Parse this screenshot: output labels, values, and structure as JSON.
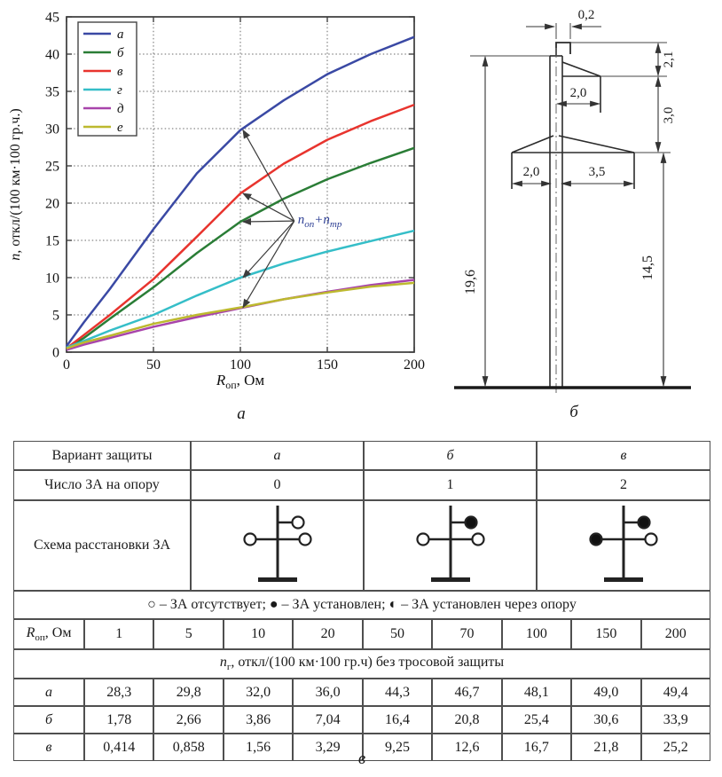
{
  "captions": {
    "chart": "а",
    "tower": "б",
    "table": "в"
  },
  "chart_data": {
    "type": "line",
    "title": "",
    "xlabel": {
      "base": "R",
      "sub": "оп",
      "rest": ", Ом"
    },
    "ylabel": {
      "ital": "n",
      "rest": ", откл/(100 км·100 гр.ч.)"
    },
    "xlim": [
      0,
      200
    ],
    "ylim": [
      0,
      45
    ],
    "xticks": [
      0,
      50,
      100,
      150,
      200
    ],
    "yticks": [
      0,
      5,
      10,
      15,
      20,
      25,
      30,
      35,
      40,
      45
    ],
    "grid": true,
    "legend_position": "top-left",
    "x": [
      0,
      10,
      25,
      50,
      75,
      100,
      125,
      150,
      175,
      200
    ],
    "series": [
      {
        "name": "а",
        "color": "#3a49a4",
        "values": [
          0.8,
          4.0,
          8.5,
          16.5,
          24.0,
          29.8,
          33.8,
          37.3,
          40.0,
          42.3
        ]
      },
      {
        "name": "б",
        "color": "#2a7d36",
        "values": [
          0.5,
          1.9,
          4.5,
          8.7,
          13.3,
          17.5,
          20.6,
          23.2,
          25.4,
          27.4
        ]
      },
      {
        "name": "в",
        "color": "#e8342e",
        "values": [
          0.5,
          2.3,
          5.0,
          9.8,
          15.5,
          21.3,
          25.3,
          28.5,
          31.0,
          33.2
        ]
      },
      {
        "name": "г",
        "color": "#35bec8",
        "values": [
          0.6,
          1.5,
          2.9,
          5.0,
          7.6,
          10.0,
          11.9,
          13.5,
          14.9,
          16.3
        ]
      },
      {
        "name": "д",
        "color": "#a844ab",
        "values": [
          0.3,
          1.0,
          1.9,
          3.4,
          4.7,
          5.9,
          7.1,
          8.1,
          9.0,
          9.7
        ]
      },
      {
        "name": "е",
        "color": "#bdb92f",
        "values": [
          0.5,
          1.3,
          2.2,
          3.8,
          5.0,
          6.0,
          7.1,
          8.0,
          8.8,
          9.3
        ]
      }
    ],
    "annotation": {
      "label": {
        "base1": "n",
        "sub1": "оп",
        "plus": "+",
        "base2": "n",
        "sub2": "тр"
      },
      "from_x": 131,
      "from_y": 17.6,
      "to_x": 100,
      "targets": [
        29.8,
        21.3,
        17.5,
        10.0,
        6.0
      ]
    }
  },
  "tower": {
    "dims": {
      "top_width": "0,2",
      "upper_section_height": "2,1",
      "upper_arm_width": "2,0",
      "middle_section_height": "3,0",
      "lower_arm_left_width": "2,0",
      "lower_arm_right_width": "3,5",
      "total_height": "19,6",
      "base_height": "14,5"
    }
  },
  "table": {
    "variant_label": "Вариант защиты",
    "variants": [
      "а",
      "б",
      "в"
    ],
    "count_label": "Число ЗА на опору",
    "counts": [
      "0",
      "1",
      "2"
    ],
    "scheme_label": "Схема расстановки ЗА",
    "schemes": [
      {
        "top": "open",
        "left": "open",
        "right": "open"
      },
      {
        "top": "filled",
        "left": "open",
        "right": "open"
      },
      {
        "top": "filled",
        "left": "filled",
        "right": "open"
      }
    ],
    "symbols_legend": "○ – ЗА отсутствует; ● – ЗА установлен; ◐ – ЗА установлен через опору",
    "r_label": {
      "base": "R",
      "sub": "оп",
      "rest": ", Ом"
    },
    "r_values": [
      "1",
      "5",
      "10",
      "20",
      "50",
      "70",
      "100",
      "150",
      "200"
    ],
    "ng_label": {
      "base": "n",
      "sub": "г",
      "rest": ", откл/(100 км·100 гр.ч) без тросовой защиты"
    },
    "rows": [
      {
        "label": "а",
        "values": [
          "28,3",
          "29,8",
          "32,0",
          "36,0",
          "44,3",
          "46,7",
          "48,1",
          "49,0",
          "49,4"
        ]
      },
      {
        "label": "б",
        "values": [
          "1,78",
          "2,66",
          "3,86",
          "7,04",
          "16,4",
          "20,8",
          "25,4",
          "30,6",
          "33,9"
        ]
      },
      {
        "label": "в",
        "values": [
          "0,414",
          "0,858",
          "1,56",
          "3,29",
          "9,25",
          "12,6",
          "16,7",
          "21,8",
          "25,2"
        ]
      }
    ]
  }
}
